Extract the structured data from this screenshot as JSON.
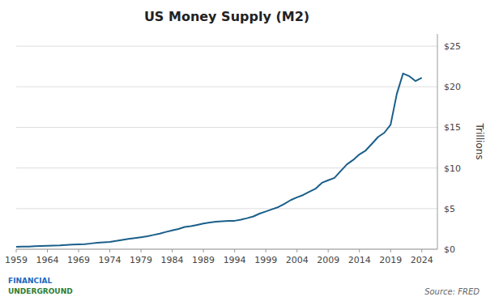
{
  "chart_data": {
    "type": "line",
    "title": "US Money Supply (M2)",
    "ylabel": "Trillions",
    "annotations": [
      "Source: FRED",
      "FINANCIAL",
      "UNDERGROUND"
    ],
    "color": "#1a5f8a",
    "grid": true,
    "xlim": [
      1959,
      2026.5
    ],
    "xticks": [
      1959,
      1964,
      1969,
      1974,
      1979,
      1984,
      1989,
      1994,
      1999,
      2004,
      2009,
      2014,
      2019,
      2024
    ],
    "ylim": [
      0,
      26.5
    ],
    "yticks": [
      {
        "value": 0,
        "label": "$0"
      },
      {
        "value": 5,
        "label": "$5"
      },
      {
        "value": 10,
        "label": "$10"
      },
      {
        "value": 15,
        "label": "$15"
      },
      {
        "value": 20,
        "label": "$20"
      },
      {
        "value": 25,
        "label": "$25"
      }
    ],
    "x": [
      1959,
      1960,
      1961,
      1962,
      1963,
      1964,
      1965,
      1966,
      1967,
      1968,
      1969,
      1970,
      1971,
      1972,
      1973,
      1974,
      1975,
      1976,
      1977,
      1978,
      1979,
      1980,
      1981,
      1982,
      1983,
      1984,
      1985,
      1986,
      1987,
      1988,
      1989,
      1990,
      1991,
      1992,
      1993,
      1994,
      1995,
      1996,
      1997,
      1998,
      1999,
      2000,
      2001,
      2002,
      2003,
      2004,
      2005,
      2006,
      2007,
      2008,
      2009,
      2010,
      2011,
      2012,
      2013,
      2014,
      2015,
      2016,
      2017,
      2018,
      2019,
      2020,
      2021,
      2022,
      2023,
      2024
    ],
    "values": [
      0.287,
      0.312,
      0.335,
      0.362,
      0.393,
      0.424,
      0.459,
      0.48,
      0.524,
      0.567,
      0.589,
      0.628,
      0.71,
      0.802,
      0.855,
      0.908,
      1.016,
      1.152,
      1.27,
      1.366,
      1.474,
      1.6,
      1.756,
      1.91,
      2.127,
      2.31,
      2.497,
      2.732,
      2.832,
      2.995,
      3.159,
      3.277,
      3.38,
      3.432,
      3.484,
      3.498,
      3.641,
      3.824,
      4.034,
      4.381,
      4.645,
      4.921,
      5.182,
      5.6,
      6.052,
      6.386,
      6.68,
      7.076,
      7.469,
      8.179,
      8.493,
      8.779,
      9.628,
      10.45,
      10.99,
      11.671,
      12.151,
      12.977,
      13.826,
      14.347,
      15.331,
      19.141,
      21.638,
      21.3,
      20.7,
      21.1
    ]
  }
}
